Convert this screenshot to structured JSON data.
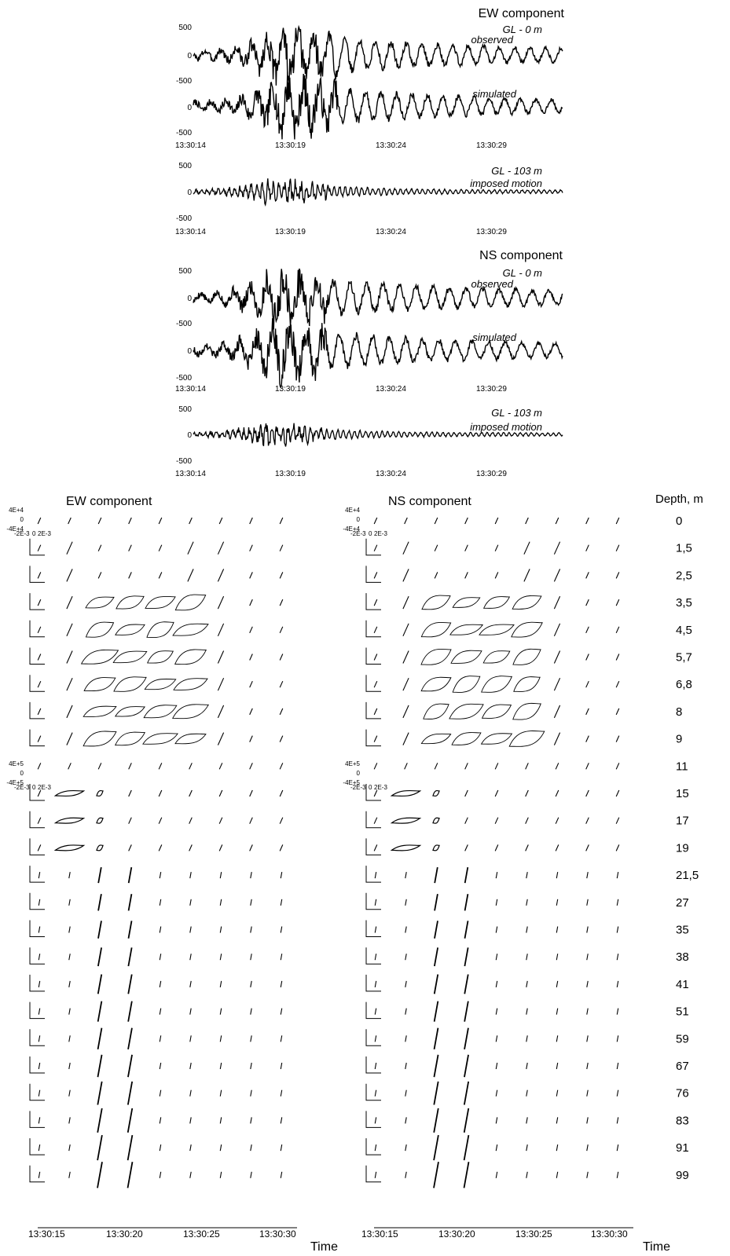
{
  "colors": {
    "line": "#000000",
    "background": "#ffffff"
  },
  "top_panel": {
    "groups": [
      {
        "title": "EW component",
        "surface": {
          "label_depth": "GL - 0 m",
          "label_observed": "observed",
          "label_simulated": "simulated",
          "y_ticks_observed": [
            "500",
            "0",
            "-500"
          ],
          "y_ticks_simulated": [
            "0",
            "-500"
          ],
          "x_ticks": [
            "13:30:14",
            "13:30:19",
            "13:30:24",
            "13:30:29"
          ]
        },
        "base": {
          "label_depth": "GL - 103 m",
          "label_motion": "imposed motion",
          "y_ticks": [
            "500",
            "0",
            "-500"
          ],
          "x_ticks": [
            "13:30:14",
            "13:30:19",
            "13:30:24",
            "13:30:29"
          ]
        }
      },
      {
        "title": "NS component",
        "surface": {
          "label_depth": "GL - 0 m",
          "label_observed": "observed",
          "label_simulated": "simulated",
          "y_ticks_observed": [
            "500",
            "0",
            "-500"
          ],
          "y_ticks_simulated": [
            "0",
            "-500"
          ],
          "x_ticks": [
            "13:30:14",
            "13:30:19",
            "13:30:24",
            "13:30:29"
          ]
        },
        "base": {
          "label_depth": "GL - 103 m",
          "label_motion": "imposed motion",
          "y_ticks": [
            "500",
            "0",
            "-500"
          ],
          "x_ticks": [
            "13:30:14",
            "13:30:19",
            "13:30:24",
            "13:30:29"
          ]
        }
      }
    ]
  },
  "loop_panels": {
    "titles": [
      "EW component",
      "NS component"
    ],
    "depth_header": "Depth, m",
    "depths": [
      "0",
      "1,5",
      "2,5",
      "3,5",
      "4,5",
      "5,7",
      "6,8",
      "8",
      "9",
      "11",
      "15",
      "17",
      "19",
      "21,5",
      "27",
      "35",
      "38",
      "41",
      "51",
      "59",
      "67",
      "76",
      "83",
      "91",
      "99"
    ],
    "axis_labels_upper": {
      "y_top": "4E+4",
      "y_mid": "0",
      "y_bottom": "-4E+4",
      "x_left": "-2E-3",
      "x_mid": "0",
      "x_right": "2E-3"
    },
    "axis_labels_lower": {
      "y_top": "4E+5",
      "y_mid": "0",
      "y_bottom": "-4E+5",
      "x_left": "-2E-3",
      "x_mid": "0",
      "x_right": "2E-3"
    },
    "x_ticks": [
      "13:30:15",
      "13:30:20",
      "13:30:25",
      "13:30:30"
    ],
    "x_axis_label": "Time"
  },
  "chart_data": [
    {
      "type": "line",
      "title": "EW component",
      "series": [
        {
          "name": "observed",
          "note_label": "GL - 0 m"
        },
        {
          "name": "simulated"
        },
        {
          "name": "imposed motion",
          "note_label": "GL - 103 m"
        }
      ],
      "x_ticks": [
        "13:30:14",
        "13:30:19",
        "13:30:24",
        "13:30:29"
      ],
      "ylim": [
        -500,
        500
      ]
    },
    {
      "type": "line",
      "title": "NS component",
      "series": [
        {
          "name": "observed",
          "note_label": "GL - 0 m"
        },
        {
          "name": "simulated"
        },
        {
          "name": "imposed motion",
          "note_label": "GL - 103 m"
        }
      ],
      "x_ticks": [
        "13:30:14",
        "13:30:19",
        "13:30:24",
        "13:30:29"
      ],
      "ylim": [
        -500,
        500
      ]
    },
    {
      "type": "scatter",
      "title": "EW component",
      "row_labels": [
        "0",
        "1,5",
        "2,5",
        "3,5",
        "4,5",
        "5,7",
        "6,8",
        "8",
        "9",
        "11",
        "15",
        "17",
        "19",
        "21,5",
        "27",
        "35",
        "38",
        "41",
        "51",
        "59",
        "67",
        "76",
        "83",
        "91",
        "99"
      ],
      "x_ticks": [
        "13:30:15",
        "13:30:20",
        "13:30:25",
        "13:30:30"
      ],
      "xlabel": "Time"
    },
    {
      "type": "scatter",
      "title": "NS component",
      "row_labels": [
        "0",
        "1,5",
        "2,5",
        "3,5",
        "4,5",
        "5,7",
        "6,8",
        "8",
        "9",
        "11",
        "15",
        "17",
        "19",
        "21,5",
        "27",
        "35",
        "38",
        "41",
        "51",
        "59",
        "67",
        "76",
        "83",
        "91",
        "99"
      ],
      "x_ticks": [
        "13:30:15",
        "13:30:20",
        "13:30:25",
        "13:30:30"
      ],
      "xlabel": "Time"
    }
  ]
}
